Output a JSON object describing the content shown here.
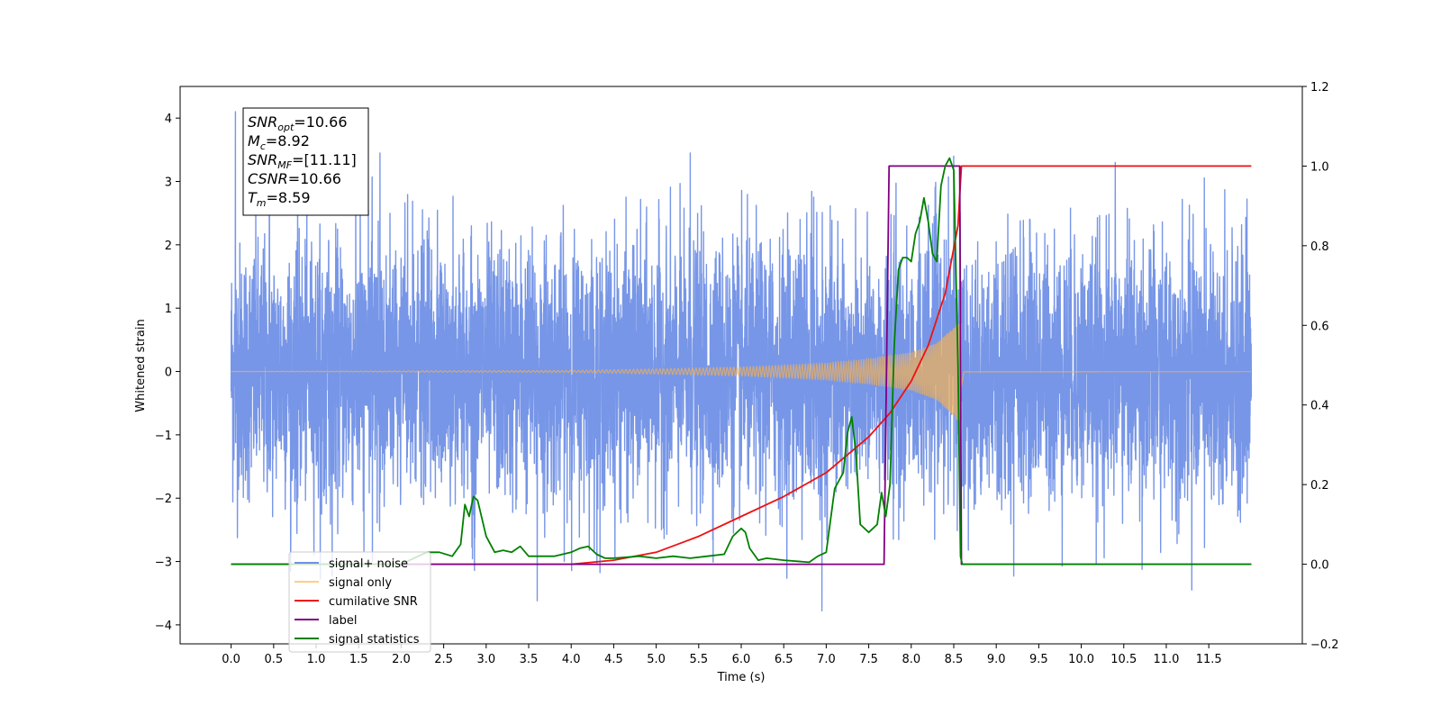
{
  "chart_data": {
    "type": "line",
    "xlabel": "Time (s)",
    "ylabel": "Whitened strain",
    "xlim": [
      -0.6,
      12.6
    ],
    "x_ticks": [
      "0.0",
      "0.5",
      "1.0",
      "1.5",
      "2.0",
      "2.5",
      "3.0",
      "3.5",
      "4.0",
      "4.5",
      "5.0",
      "5.5",
      "6.0",
      "6.5",
      "7.0",
      "7.5",
      "8.0",
      "8.5",
      "9.0",
      "9.5",
      "10.0",
      "10.5",
      "11.0",
      "11.5"
    ],
    "ylim_left": [
      -4.3,
      4.5
    ],
    "y_ticks_left": [
      "4",
      "3",
      "2",
      "1",
      "0",
      "−1",
      "−2",
      "−3",
      "−4"
    ],
    "ylim_right": [
      -0.2,
      1.2
    ],
    "y_ticks_right": [
      "1.2",
      "1.0",
      "0.8",
      "0.6",
      "0.4",
      "0.2",
      "0.0",
      "−0.2"
    ],
    "legend_position": "lower-left",
    "info_box": {
      "lines": [
        {
          "sym": "SNR",
          "sub": "opt",
          "value": "=10.66"
        },
        {
          "sym": "M",
          "sub": "c",
          "value": "=8.92"
        },
        {
          "sym": "SNR",
          "sub": "MF",
          "value": "=[11.11]"
        },
        {
          "sym": "CSNR",
          "sub": "",
          "value": "=10.66"
        },
        {
          "sym": "T",
          "sub": "m",
          "value": "=8.59"
        }
      ]
    },
    "series": [
      {
        "name": "signal+ noise",
        "color": "#7090e6",
        "axis": "left",
        "kind": "noise",
        "x_range": [
          0.0,
          12.0
        ],
        "noise_std": 1.0,
        "peaks_max": [
          [
            0.05,
            4.1
          ],
          [
            0.45,
            3.55
          ],
          [
            1.75,
            3.45
          ],
          [
            5.4,
            3.45
          ],
          [
            8.5,
            3.4
          ],
          [
            10.4,
            3.3
          ]
        ],
        "peaks_min": [
          [
            3.6,
            -3.62
          ],
          [
            6.95,
            -3.78
          ],
          [
            11.3,
            -3.45
          ]
        ]
      },
      {
        "name": "signal only",
        "color": "#ffb347",
        "axis": "left",
        "kind": "chirp",
        "merger_time": 8.59,
        "envelope": {
          "t": [
            0.0,
            4.0,
            5.0,
            6.0,
            7.0,
            7.5,
            8.0,
            8.3,
            8.5,
            8.59,
            8.62,
            12.0
          ],
          "a": [
            0.0,
            0.015,
            0.04,
            0.07,
            0.13,
            0.2,
            0.3,
            0.45,
            0.7,
            0.85,
            0.02,
            0.01
          ]
        }
      },
      {
        "name": "cumilative SNR",
        "color": "#ee1111",
        "axis": "right",
        "x": [
          0.0,
          4.0,
          4.5,
          5.0,
          5.5,
          6.0,
          6.5,
          7.0,
          7.5,
          7.75,
          8.0,
          8.2,
          8.4,
          8.55,
          8.59,
          8.6,
          12.0
        ],
        "y": [
          0.0,
          0.0,
          0.01,
          0.03,
          0.07,
          0.12,
          0.17,
          0.23,
          0.32,
          0.38,
          0.46,
          0.55,
          0.68,
          0.85,
          1.0,
          1.0,
          1.0
        ]
      },
      {
        "name": "label",
        "color": "#800080",
        "axis": "right",
        "x": [
          0.0,
          7.68,
          7.74,
          8.57,
          8.59,
          12.0
        ],
        "y": [
          0.0,
          0.0,
          1.0,
          1.0,
          0.0,
          0.0
        ]
      },
      {
        "name": "signal statistics",
        "color": "#008000",
        "axis": "right",
        "x": [
          0.0,
          2.0,
          2.3,
          2.45,
          2.6,
          2.7,
          2.75,
          2.8,
          2.85,
          2.9,
          3.0,
          3.1,
          3.2,
          3.3,
          3.4,
          3.5,
          3.6,
          3.8,
          4.0,
          4.1,
          4.2,
          4.3,
          4.4,
          4.5,
          4.8,
          5.0,
          5.2,
          5.4,
          5.6,
          5.8,
          5.9,
          6.0,
          6.05,
          6.1,
          6.2,
          6.3,
          6.5,
          6.8,
          6.9,
          7.0,
          7.1,
          7.2,
          7.25,
          7.3,
          7.35,
          7.4,
          7.5,
          7.6,
          7.65,
          7.7,
          7.75,
          7.8,
          7.85,
          7.9,
          7.95,
          8.0,
          8.05,
          8.1,
          8.15,
          8.2,
          8.25,
          8.3,
          8.35,
          8.4,
          8.45,
          8.5,
          8.55,
          8.58,
          8.6,
          8.62,
          12.0
        ],
        "y": [
          0.0,
          0.0,
          0.03,
          0.03,
          0.02,
          0.05,
          0.15,
          0.12,
          0.17,
          0.16,
          0.07,
          0.03,
          0.035,
          0.03,
          0.045,
          0.02,
          0.02,
          0.02,
          0.03,
          0.04,
          0.045,
          0.025,
          0.015,
          0.015,
          0.02,
          0.015,
          0.02,
          0.015,
          0.02,
          0.025,
          0.07,
          0.09,
          0.08,
          0.04,
          0.01,
          0.015,
          0.01,
          0.005,
          0.02,
          0.03,
          0.19,
          0.23,
          0.33,
          0.37,
          0.28,
          0.1,
          0.08,
          0.1,
          0.18,
          0.12,
          0.2,
          0.55,
          0.74,
          0.77,
          0.77,
          0.76,
          0.83,
          0.86,
          0.92,
          0.86,
          0.78,
          0.76,
          0.95,
          1.0,
          1.02,
          0.99,
          0.5,
          0.02,
          0.0,
          0.0,
          0.0
        ]
      }
    ]
  }
}
